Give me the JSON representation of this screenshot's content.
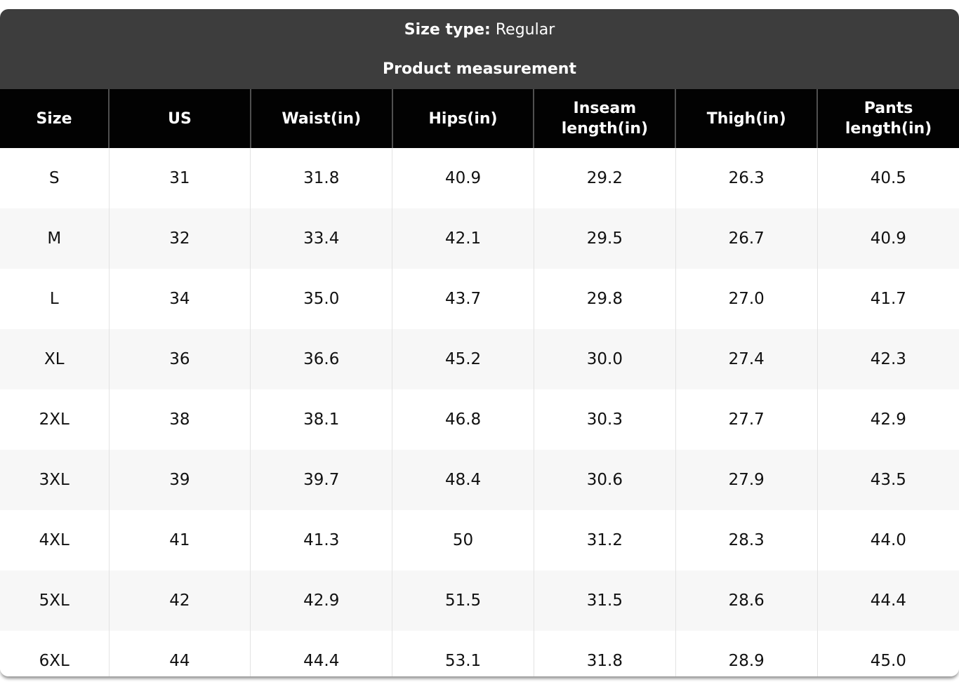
{
  "header": {
    "size_type_label": "Size type:",
    "size_type_value": "Regular",
    "title": "Product measurement"
  },
  "chart_data": {
    "type": "table",
    "columns": [
      "Size",
      "US",
      "Waist(in)",
      "Hips(in)",
      "Inseam length(in)",
      "Thigh(in)",
      "Pants length(in)"
    ],
    "rows": [
      [
        "S",
        "31",
        "31.8",
        "40.9",
        "29.2",
        "26.3",
        "40.5"
      ],
      [
        "M",
        "32",
        "33.4",
        "42.1",
        "29.5",
        "26.7",
        "40.9"
      ],
      [
        "L",
        "34",
        "35.0",
        "43.7",
        "29.8",
        "27.0",
        "41.7"
      ],
      [
        "XL",
        "36",
        "36.6",
        "45.2",
        "30.0",
        "27.4",
        "42.3"
      ],
      [
        "2XL",
        "38",
        "38.1",
        "46.8",
        "30.3",
        "27.7",
        "42.9"
      ],
      [
        "3XL",
        "39",
        "39.7",
        "48.4",
        "30.6",
        "27.9",
        "43.5"
      ],
      [
        "4XL",
        "41",
        "41.3",
        "50",
        "31.2",
        "28.3",
        "44.0"
      ],
      [
        "5XL",
        "42",
        "42.9",
        "51.5",
        "31.5",
        "28.6",
        "44.4"
      ],
      [
        "6XL",
        "44",
        "44.4",
        "53.1",
        "31.8",
        "28.9",
        "45.0"
      ]
    ]
  },
  "colors": {
    "band_background": "#3d3d3d",
    "header_row_background": "#020202",
    "header_text": "#ffffff",
    "body_text": "#111111",
    "alt_row_background": "#f7f7f7",
    "body_divider": "#e3e3e3",
    "header_divider": "#4f4f4f"
  }
}
